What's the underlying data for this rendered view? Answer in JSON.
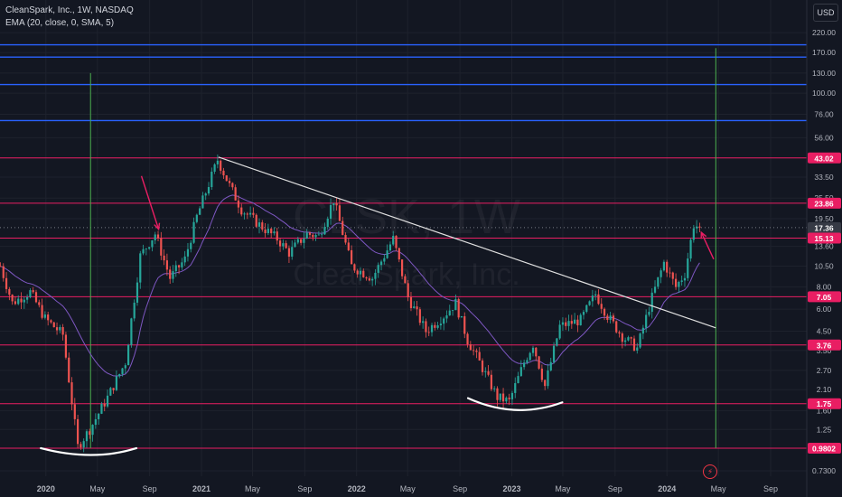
{
  "header": {
    "symbol_line": "CleanSpark, Inc., 1W, NASDAQ",
    "indicator_line": "EMA (20, close, 0, SMA, 5)",
    "currency": "USD"
  },
  "watermark": {
    "ticker": "CLSK, 1W",
    "name": "CleanSpark, Inc."
  },
  "colors": {
    "background": "#131722",
    "up": "#26a69a",
    "down": "#ef5350",
    "blue_level": "#2962ff",
    "red_level": "#e91e63",
    "ema": "#7e57c2",
    "trendline": "#e0e0e0",
    "vertical_marker": "#4caf50",
    "annotation": "#e91e63",
    "curve": "#ffffff"
  },
  "icons": {
    "flash": "lightning-icon"
  },
  "chart_data": {
    "type": "candlestick",
    "title": "CleanSpark, Inc., 1W, NASDAQ",
    "y_scale": "log",
    "ylim": [
      0.68,
      260
    ],
    "x_labels": [
      "2020",
      "May",
      "Sep",
      "2021",
      "May",
      "Sep",
      "2022",
      "May",
      "Sep",
      "2023",
      "May",
      "Sep",
      "2024",
      "May",
      "Sep"
    ],
    "x_label_dates": [
      "2020-01-01",
      "2020-05-01",
      "2020-09-01",
      "2021-01-01",
      "2021-05-01",
      "2021-09-01",
      "2022-01-01",
      "2022-05-01",
      "2022-09-01",
      "2023-01-01",
      "2023-05-01",
      "2023-09-01",
      "2024-01-01",
      "2024-05-01",
      "2024-09-01"
    ],
    "x_range": [
      "2019-09-15",
      "2024-11-25"
    ],
    "y_ticks": [
      0.73,
      1.25,
      1.6,
      2.1,
      2.7,
      3.5,
      4.5,
      6.0,
      8.0,
      10.5,
      13.6,
      19.5,
      25.5,
      33.5,
      43.0,
      56.0,
      76.0,
      100.0,
      130.0,
      170.0,
      220.0
    ],
    "y_tick_labels": [
      "0.7300",
      "1.25",
      "1.60",
      "2.10",
      "2.70",
      "3.50",
      "4.50",
      "6.00",
      "8.00",
      "10.50",
      "13.60",
      "19.50",
      "25.50",
      "33.50",
      "43.00",
      "56.00",
      "76.00",
      "100.00",
      "130.00",
      "170.00",
      "220.00"
    ],
    "price_labels": [
      {
        "value": 43.02,
        "text": "43.02"
      },
      {
        "value": 23.86,
        "text": "23.86"
      },
      {
        "value": 17.36,
        "text": "17.36",
        "sub": "1d 4h"
      },
      {
        "value": 15.13,
        "text": "15.13"
      },
      {
        "value": 7.05,
        "text": "7.05"
      },
      {
        "value": 3.76,
        "text": "3.76"
      },
      {
        "value": 1.75,
        "text": "1.75"
      },
      {
        "value": 0.9802,
        "text": "0.9802"
      }
    ],
    "current_price": 17.36,
    "horizontal_levels": {
      "blue": [
        188,
        160,
        112,
        70
      ],
      "red": [
        43.02,
        23.86,
        15.13,
        7.05,
        3.76,
        1.75,
        0.9802
      ]
    },
    "trendline": {
      "from": {
        "date": "2021-02-10",
        "value": 43.5
      },
      "to": {
        "date": "2024-04-25",
        "value": 4.7
      }
    },
    "vertical_markers": [
      "2020-04-15",
      "2024-04-25"
    ],
    "anchors": [
      {
        "date": "2019-09-16",
        "value": 10.5
      },
      {
        "date": "2019-10-14",
        "value": 6.5
      },
      {
        "date": "2019-11-25",
        "value": 7.5
      },
      {
        "date": "2019-12-30",
        "value": 5.3
      },
      {
        "date": "2020-02-10",
        "value": 4.3
      },
      {
        "date": "2020-03-16",
        "value": 1.0
      },
      {
        "date": "2020-04-13",
        "value": 1.25
      },
      {
        "date": "2020-05-25",
        "value": 1.9
      },
      {
        "date": "2020-07-06",
        "value": 3.0
      },
      {
        "date": "2020-08-10",
        "value": 12.0
      },
      {
        "date": "2020-09-14",
        "value": 16.0
      },
      {
        "date": "2020-10-19",
        "value": 9.0
      },
      {
        "date": "2020-11-23",
        "value": 11.5
      },
      {
        "date": "2020-12-21",
        "value": 20.0
      },
      {
        "date": "2021-02-08",
        "value": 42.0
      },
      {
        "date": "2021-03-08",
        "value": 30.0
      },
      {
        "date": "2021-04-05",
        "value": 22.0
      },
      {
        "date": "2021-05-17",
        "value": 18.0
      },
      {
        "date": "2021-06-28",
        "value": 15.0
      },
      {
        "date": "2021-07-26",
        "value": 12.5
      },
      {
        "date": "2021-09-06",
        "value": 16.0
      },
      {
        "date": "2021-10-04",
        "value": 15.5
      },
      {
        "date": "2021-11-08",
        "value": 25.0
      },
      {
        "date": "2021-12-20",
        "value": 10.5
      },
      {
        "date": "2022-02-07",
        "value": 9.0
      },
      {
        "date": "2022-03-28",
        "value": 15.0
      },
      {
        "date": "2022-05-02",
        "value": 7.0
      },
      {
        "date": "2022-06-13",
        "value": 4.5
      },
      {
        "date": "2022-07-25",
        "value": 5.5
      },
      {
        "date": "2022-08-22",
        "value": 6.5
      },
      {
        "date": "2022-09-19",
        "value": 4.0
      },
      {
        "date": "2022-10-17",
        "value": 3.0
      },
      {
        "date": "2022-11-28",
        "value": 1.9
      },
      {
        "date": "2022-12-26",
        "value": 1.8
      },
      {
        "date": "2023-01-30",
        "value": 3.0
      },
      {
        "date": "2023-02-20",
        "value": 3.8
      },
      {
        "date": "2023-03-20",
        "value": 2.2
      },
      {
        "date": "2023-04-24",
        "value": 4.8
      },
      {
        "date": "2023-06-12",
        "value": 5.2
      },
      {
        "date": "2023-07-17",
        "value": 7.3
      },
      {
        "date": "2023-08-14",
        "value": 5.5
      },
      {
        "date": "2023-09-18",
        "value": 4.2
      },
      {
        "date": "2023-10-23",
        "value": 3.6
      },
      {
        "date": "2023-11-27",
        "value": 7.0
      },
      {
        "date": "2023-12-25",
        "value": 11.0
      },
      {
        "date": "2024-01-22",
        "value": 8.0
      },
      {
        "date": "2024-02-12",
        "value": 9.5
      },
      {
        "date": "2024-03-04",
        "value": 18.0
      },
      {
        "date": "2024-03-18",
        "value": 17.36
      }
    ],
    "candle_count": 236
  }
}
